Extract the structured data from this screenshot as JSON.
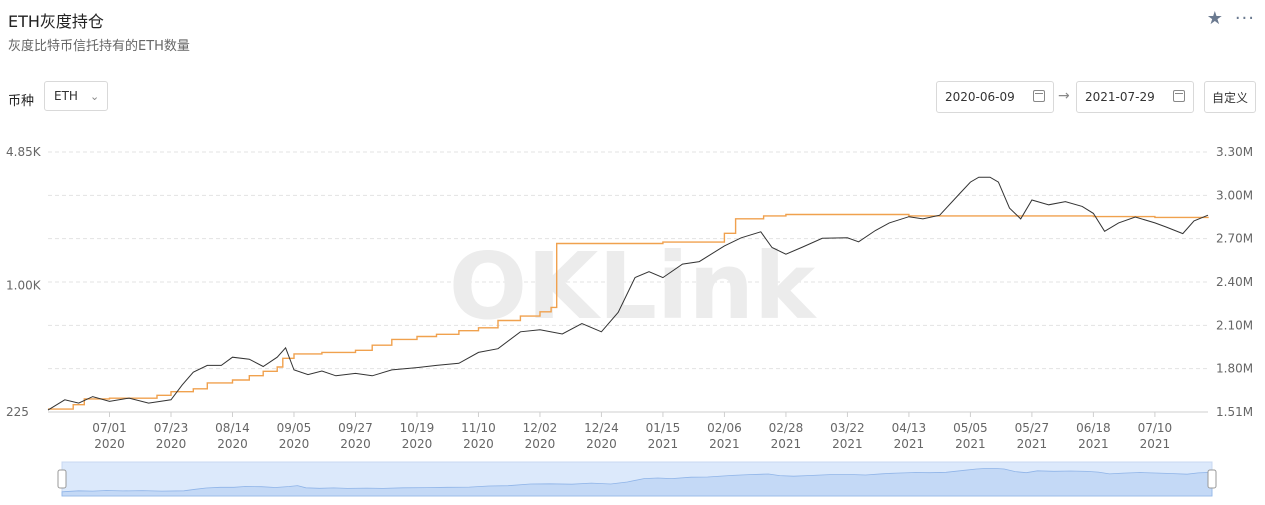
{
  "header": {
    "title": "ETH灰度持仓",
    "subtitle": "灰度比特币信托持有的ETH数量"
  },
  "icons": {
    "favorite": "star-icon",
    "more": "more-icon"
  },
  "filters": {
    "coin_label": "币种",
    "coin_value": "ETH",
    "start_date": "2020-06-09",
    "end_date": "2021-07-29",
    "custom_label": "自定义"
  },
  "watermark": "OKLink",
  "colors": {
    "price_line": "#333333",
    "holdings_line": "#f0a14e",
    "grid": "#e3e3e3",
    "navigator_fill": "#dce9fb"
  },
  "chart_data": {
    "type": "line",
    "x_range": [
      "2020-06-09",
      "2021-07-29"
    ],
    "x_ticks": [
      {
        "date": "2020-07-01",
        "label": "07/01",
        "year": "2020"
      },
      {
        "date": "2020-07-23",
        "label": "07/23",
        "year": "2020"
      },
      {
        "date": "2020-08-14",
        "label": "08/14",
        "year": "2020"
      },
      {
        "date": "2020-09-05",
        "label": "09/05",
        "year": "2020"
      },
      {
        "date": "2020-09-27",
        "label": "09/27",
        "year": "2020"
      },
      {
        "date": "2020-10-19",
        "label": "10/19",
        "year": "2020"
      },
      {
        "date": "2020-11-10",
        "label": "11/10",
        "year": "2020"
      },
      {
        "date": "2020-12-02",
        "label": "12/02",
        "year": "2020"
      },
      {
        "date": "2020-12-24",
        "label": "12/24",
        "year": "2020"
      },
      {
        "date": "2021-01-15",
        "label": "01/15",
        "year": "2021"
      },
      {
        "date": "2021-02-06",
        "label": "02/06",
        "year": "2021"
      },
      {
        "date": "2021-02-28",
        "label": "02/28",
        "year": "2021"
      },
      {
        "date": "2021-03-22",
        "label": "03/22",
        "year": "2021"
      },
      {
        "date": "2021-04-13",
        "label": "04/13",
        "year": "2021"
      },
      {
        "date": "2021-05-05",
        "label": "05/05",
        "year": "2021"
      },
      {
        "date": "2021-05-27",
        "label": "05/27",
        "year": "2021"
      },
      {
        "date": "2021-06-18",
        "label": "06/18",
        "year": "2021"
      },
      {
        "date": "2021-07-10",
        "label": "07/10",
        "year": "2021"
      }
    ],
    "left_axis": {
      "ticks": [
        "4.85K",
        "1.00K",
        "225"
      ],
      "values": [
        4850,
        1000,
        225
      ],
      "scale": "log"
    },
    "right_axis": {
      "ticks": [
        "3.30M",
        "3.00M",
        "2.70M",
        "2.40M",
        "2.10M",
        "1.80M",
        "1.51M"
      ],
      "range": [
        1510000,
        3300000
      ]
    },
    "series": [
      {
        "axis": "left",
        "values": [
          [
            "2020-06-09",
            230
          ],
          [
            "2020-06-15",
            260
          ],
          [
            "2020-06-20",
            250
          ],
          [
            "2020-06-25",
            270
          ],
          [
            "2020-07-01",
            255
          ],
          [
            "2020-07-08",
            265
          ],
          [
            "2020-07-15",
            250
          ],
          [
            "2020-07-23",
            260
          ],
          [
            "2020-07-27",
            310
          ],
          [
            "2020-07-31",
            360
          ],
          [
            "2020-08-05",
            390
          ],
          [
            "2020-08-10",
            390
          ],
          [
            "2020-08-14",
            430
          ],
          [
            "2020-08-20",
            420
          ],
          [
            "2020-08-25",
            385
          ],
          [
            "2020-08-30",
            430
          ],
          [
            "2020-09-02",
            480
          ],
          [
            "2020-09-05",
            370
          ],
          [
            "2020-09-10",
            350
          ],
          [
            "2020-09-15",
            365
          ],
          [
            "2020-09-20",
            345
          ],
          [
            "2020-09-27",
            355
          ],
          [
            "2020-10-03",
            345
          ],
          [
            "2020-10-10",
            370
          ],
          [
            "2020-10-19",
            380
          ],
          [
            "2020-10-26",
            390
          ],
          [
            "2020-11-03",
            400
          ],
          [
            "2020-11-10",
            455
          ],
          [
            "2020-11-17",
            475
          ],
          [
            "2020-11-25",
            580
          ],
          [
            "2020-12-02",
            595
          ],
          [
            "2020-12-10",
            565
          ],
          [
            "2020-12-17",
            640
          ],
          [
            "2020-12-24",
            580
          ],
          [
            "2020-12-30",
            730
          ],
          [
            "2021-01-05",
            1100
          ],
          [
            "2021-01-10",
            1180
          ],
          [
            "2021-01-15",
            1100
          ],
          [
            "2021-01-22",
            1290
          ],
          [
            "2021-01-28",
            1330
          ],
          [
            "2021-02-06",
            1600
          ],
          [
            "2021-02-12",
            1760
          ],
          [
            "2021-02-19",
            1890
          ],
          [
            "2021-02-23",
            1570
          ],
          [
            "2021-02-28",
            1450
          ],
          [
            "2021-03-06",
            1580
          ],
          [
            "2021-03-13",
            1750
          ],
          [
            "2021-03-22",
            1760
          ],
          [
            "2021-03-26",
            1680
          ],
          [
            "2021-04-01",
            1920
          ],
          [
            "2021-04-06",
            2100
          ],
          [
            "2021-04-13",
            2260
          ],
          [
            "2021-04-18",
            2200
          ],
          [
            "2021-04-24",
            2300
          ],
          [
            "2021-05-01",
            2950
          ],
          [
            "2021-05-05",
            3400
          ],
          [
            "2021-05-08",
            3600
          ],
          [
            "2021-05-12",
            3600
          ],
          [
            "2021-05-15",
            3400
          ],
          [
            "2021-05-19",
            2500
          ],
          [
            "2021-05-23",
            2200
          ],
          [
            "2021-05-27",
            2750
          ],
          [
            "2021-06-02",
            2600
          ],
          [
            "2021-06-08",
            2700
          ],
          [
            "2021-06-14",
            2550
          ],
          [
            "2021-06-18",
            2350
          ],
          [
            "2021-06-22",
            1900
          ],
          [
            "2021-06-27",
            2100
          ],
          [
            "2021-07-03",
            2250
          ],
          [
            "2021-07-10",
            2100
          ],
          [
            "2021-07-14",
            2000
          ],
          [
            "2021-07-20",
            1850
          ],
          [
            "2021-07-24",
            2150
          ],
          [
            "2021-07-29",
            2300
          ]
        ]
      },
      {
        "axis": "right",
        "values": [
          [
            "2020-06-09",
            1530000
          ],
          [
            "2020-06-18",
            1560000
          ],
          [
            "2020-06-22",
            1600000
          ],
          [
            "2020-07-01",
            1605000
          ],
          [
            "2020-07-18",
            1625000
          ],
          [
            "2020-07-23",
            1650000
          ],
          [
            "2020-07-31",
            1670000
          ],
          [
            "2020-08-05",
            1710000
          ],
          [
            "2020-08-14",
            1730000
          ],
          [
            "2020-08-20",
            1760000
          ],
          [
            "2020-08-25",
            1790000
          ],
          [
            "2020-08-30",
            1820000
          ],
          [
            "2020-09-01",
            1880000
          ],
          [
            "2020-09-05",
            1910000
          ],
          [
            "2020-09-15",
            1920000
          ],
          [
            "2020-09-27",
            1935000
          ],
          [
            "2020-10-03",
            1970000
          ],
          [
            "2020-10-10",
            2010000
          ],
          [
            "2020-10-19",
            2030000
          ],
          [
            "2020-10-26",
            2045000
          ],
          [
            "2020-11-03",
            2070000
          ],
          [
            "2020-11-10",
            2090000
          ],
          [
            "2020-11-17",
            2140000
          ],
          [
            "2020-11-25",
            2170000
          ],
          [
            "2020-12-02",
            2200000
          ],
          [
            "2020-12-06",
            2230000
          ],
          [
            "2020-12-08",
            2670000
          ],
          [
            "2021-01-15",
            2680000
          ],
          [
            "2021-02-02",
            2680000
          ],
          [
            "2021-02-06",
            2740000
          ],
          [
            "2021-02-10",
            2840000
          ],
          [
            "2021-02-20",
            2860000
          ],
          [
            "2021-02-28",
            2870000
          ],
          [
            "2021-03-22",
            2870000
          ],
          [
            "2021-04-13",
            2860000
          ],
          [
            "2021-05-05",
            2860000
          ],
          [
            "2021-05-27",
            2860000
          ],
          [
            "2021-06-18",
            2855000
          ],
          [
            "2021-07-10",
            2850000
          ],
          [
            "2021-07-29",
            2845000
          ]
        ]
      }
    ]
  }
}
